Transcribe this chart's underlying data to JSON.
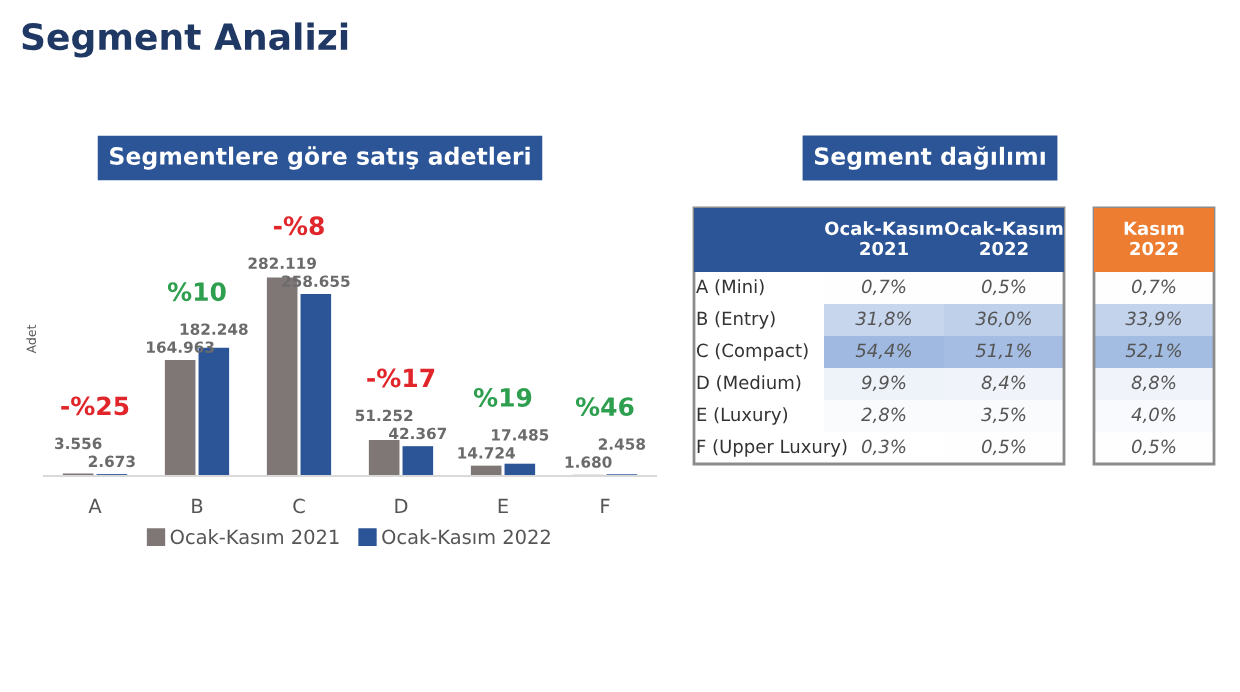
{
  "chart_data": [
    {
      "type": "bar",
      "title": "Segment Analizi",
      "subtitle": "Segmentlere göre satış adetleri",
      "ylabel": "Adet",
      "categories": [
        "A",
        "B",
        "C",
        "D",
        "E",
        "F"
      ],
      "series": [
        {
          "name": "Ocak-Kasım 2021",
          "color": "#7f7776",
          "values": [
            3556,
            164963,
            282119,
            51252,
            14724,
            1680
          ],
          "value_labels": [
            "3.556",
            "164.963",
            "282.119",
            "51.252",
            "14.724",
            "1.680"
          ]
        },
        {
          "name": "Ocak-Kasım 2022",
          "color": "#2c5597",
          "values": [
            2673,
            182248,
            258655,
            42367,
            17485,
            2458
          ],
          "value_labels": [
            "2.673",
            "182.248",
            "258.655",
            "42.367",
            "17.485",
            "2.458"
          ]
        }
      ],
      "annotations": [
        "-%25",
        "%10",
        "-%8",
        "-%17",
        "%19",
        "%46"
      ],
      "legend": "bottom",
      "grid": false,
      "tick_labels": "x"
    },
    {
      "type": "heatmap",
      "title": "Segment dağılımı",
      "categories": [
        "Ocak-Kasım\n2021",
        "Ocak-Kasım\n2022",
        "Kasım\n2022"
      ],
      "y_categories": [
        "A (Mini)",
        "B (Entry)",
        "C (Compact)",
        "D (Medium)",
        "E (Luxury)",
        "F (Upper Luxury)"
      ],
      "cells": [
        [
          0.7,
          0.5,
          0.7
        ],
        [
          31.8,
          36.0,
          33.9
        ],
        [
          54.4,
          51.1,
          52.1
        ],
        [
          9.9,
          8.4,
          8.8
        ],
        [
          2.8,
          3.5,
          4.0
        ],
        [
          0.3,
          0.5,
          0.5
        ]
      ],
      "cell_labels": [
        [
          "0,7%",
          "0,5%",
          "0,7%"
        ],
        [
          "31,8%",
          "36,0%",
          "33,9%"
        ],
        [
          "54,4%",
          "51,1%",
          "52,1%"
        ],
        [
          "9,9%",
          "8,4%",
          "8,8%"
        ],
        [
          "2,8%",
          "3,5%",
          "4,0%"
        ],
        [
          "0,3%",
          "0,5%",
          "0,5%"
        ]
      ]
    }
  ]
}
